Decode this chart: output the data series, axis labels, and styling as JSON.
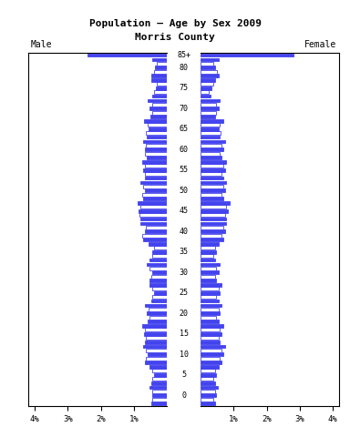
{
  "title": "Population — Age by Sex 2009",
  "subtitle": "Morris County",
  "male_label": "Male",
  "female_label": "Female",
  "age_groups": [
    "85+",
    "80",
    "75",
    "70",
    "65",
    "60",
    "55",
    "50",
    "45",
    "40",
    "35",
    "30",
    "25",
    "20",
    "15",
    "10",
    "5",
    "0"
  ],
  "bar_color_solid": "#4444ee",
  "bar_color_edge": "#4444ee",
  "xlim": 4.2,
  "male_bars": {
    "85+": [
      2.4
    ],
    "80": [
      0.48,
      0.38,
      0.36,
      0.32,
      0.44
    ],
    "75": [
      0.44,
      0.38,
      0.34,
      0.3,
      0.48
    ],
    "70": [
      0.5,
      0.44,
      0.52,
      0.46,
      0.58
    ],
    "65": [
      0.6,
      0.64,
      0.56,
      0.58,
      0.7
    ],
    "60": [
      0.62,
      0.66,
      0.68,
      0.64,
      0.72
    ],
    "55": [
      0.66,
      0.68,
      0.72,
      0.66,
      0.76
    ],
    "50": [
      0.72,
      0.74,
      0.68,
      0.72,
      0.8
    ],
    "45": [
      0.82,
      0.84,
      0.86,
      0.82,
      0.9
    ],
    "40": [
      0.72,
      0.76,
      0.68,
      0.64,
      0.8
    ],
    "35": [
      0.52,
      0.46,
      0.44,
      0.4,
      0.56
    ],
    "30": [
      0.52,
      0.48,
      0.44,
      0.52,
      0.6
    ],
    "25": [
      0.48,
      0.44,
      0.38,
      0.44,
      0.54
    ],
    "20": [
      0.58,
      0.54,
      0.6,
      0.56,
      0.66
    ],
    "15": [
      0.68,
      0.64,
      0.7,
      0.66,
      0.76
    ],
    "10": [
      0.68,
      0.64,
      0.58,
      0.64,
      0.72
    ],
    "5": [
      0.48,
      0.44,
      0.38,
      0.44,
      0.54
    ],
    "0": [
      0.48,
      0.44,
      0.46,
      0.44,
      0.52
    ]
  },
  "female_bars": {
    "85+": [
      2.8
    ],
    "80": [
      0.56,
      0.5,
      0.44,
      0.38,
      0.54
    ],
    "75": [
      0.3,
      0.26,
      0.34,
      0.38,
      0.44
    ],
    "70": [
      0.44,
      0.48,
      0.54,
      0.48,
      0.58
    ],
    "65": [
      0.58,
      0.6,
      0.54,
      0.58,
      0.68
    ],
    "60": [
      0.64,
      0.58,
      0.68,
      0.64,
      0.74
    ],
    "55": [
      0.68,
      0.64,
      0.74,
      0.68,
      0.78
    ],
    "50": [
      0.68,
      0.64,
      0.74,
      0.68,
      0.78
    ],
    "45": [
      0.78,
      0.74,
      0.84,
      0.78,
      0.88
    ],
    "40": [
      0.68,
      0.64,
      0.74,
      0.68,
      0.78
    ],
    "35": [
      0.44,
      0.38,
      0.48,
      0.44,
      0.54
    ],
    "30": [
      0.48,
      0.44,
      0.54,
      0.48,
      0.58
    ],
    "25": [
      0.54,
      0.48,
      0.58,
      0.54,
      0.64
    ],
    "20": [
      0.54,
      0.48,
      0.58,
      0.54,
      0.64
    ],
    "15": [
      0.58,
      0.54,
      0.64,
      0.58,
      0.68
    ],
    "10": [
      0.64,
      0.58,
      0.68,
      0.64,
      0.74
    ],
    "5": [
      0.44,
      0.38,
      0.48,
      0.44,
      0.54
    ],
    "0": [
      0.44,
      0.38,
      0.48,
      0.44,
      0.52
    ]
  }
}
